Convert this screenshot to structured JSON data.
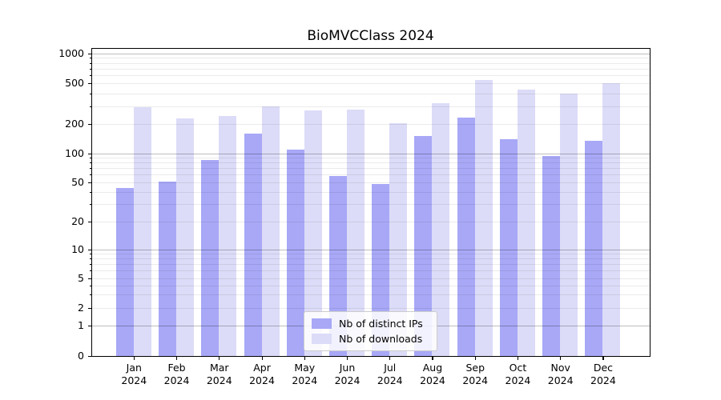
{
  "title": "BioMVCClass 2024",
  "chart_data": {
    "type": "bar",
    "title": "BioMVCClass 2024",
    "x_axis": {
      "months": [
        "Jan",
        "Feb",
        "Mar",
        "Apr",
        "May",
        "Jun",
        "Jul",
        "Aug",
        "Sep",
        "Oct",
        "Nov",
        "Dec"
      ],
      "year": "2024"
    },
    "y_axis": {
      "ticks": [
        0,
        1,
        2,
        5,
        10,
        20,
        50,
        100,
        200,
        500,
        1000
      ],
      "scale": "symlog",
      "range": [
        0,
        1050
      ]
    },
    "series": [
      {
        "name": "Nb of distinct IPs",
        "color": "#a8a8f7",
        "values": [
          44,
          51,
          85,
          160,
          110,
          58,
          48,
          150,
          230,
          140,
          94,
          135
        ]
      },
      {
        "name": "Nb of downloads",
        "color": "#dcdcf8",
        "values": [
          290,
          225,
          240,
          300,
          270,
          275,
          205,
          320,
          545,
          435,
          395,
          505
        ]
      }
    ],
    "legend": {
      "entries": [
        "Nb of distinct IPs",
        "Nb of downloads"
      ],
      "position": "inside-bottom-center"
    },
    "grid": {
      "major_lines": [
        1,
        10,
        100,
        1000
      ],
      "minor_lines": "n x 10^k for n=2..9, k=0..2"
    }
  }
}
